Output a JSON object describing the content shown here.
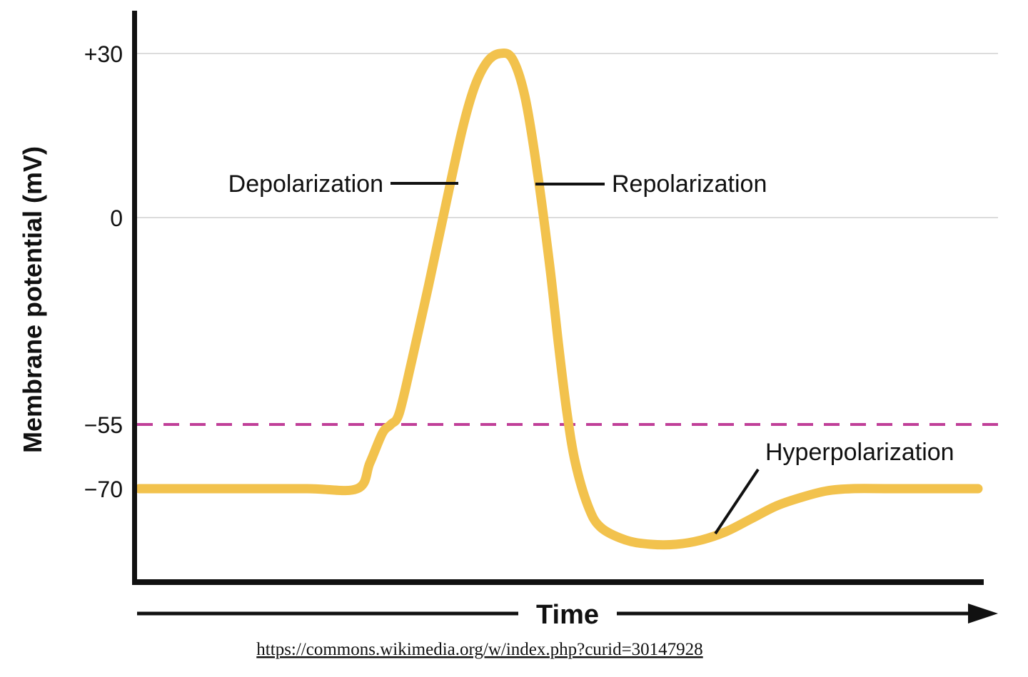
{
  "chart_data": {
    "type": "line",
    "x_axis": {
      "label": "Time",
      "unit": "arbitrary"
    },
    "y_axis": {
      "label": "Membrane potential (mV)",
      "ticks": [
        {
          "label": "+30",
          "value": 30
        },
        {
          "label": "0",
          "value": 0
        },
        {
          "label": "−55",
          "value": -55
        },
        {
          "label": "−70",
          "value": -70
        }
      ]
    },
    "gridline_values": [
      30,
      0
    ],
    "threshold_line": {
      "value": -55,
      "style": "dashed",
      "color": "#c03f98"
    },
    "resting_potential": -70,
    "peak_potential": 30,
    "hyperpolarization_min": -83,
    "annotations": [
      {
        "label": "Depolarization",
        "phase": "rising"
      },
      {
        "label": "Repolarization",
        "phase": "falling"
      },
      {
        "label": "Hyperpolarization",
        "phase": "undershoot"
      }
    ],
    "series": [
      {
        "name": "membrane-potential",
        "color": "#f2c24d",
        "points": [
          [
            0,
            -70
          ],
          [
            1,
            -70
          ],
          [
            2,
            -70
          ],
          [
            2.6,
            -70
          ],
          [
            2.75,
            -64
          ],
          [
            2.9,
            -57
          ],
          [
            3.0,
            -55
          ],
          [
            3.1,
            -52
          ],
          [
            3.25,
            -38
          ],
          [
            3.45,
            -18
          ],
          [
            3.65,
            2
          ],
          [
            3.85,
            16
          ],
          [
            4.0,
            24
          ],
          [
            4.15,
            28.5
          ],
          [
            4.3,
            30
          ],
          [
            4.45,
            29
          ],
          [
            4.6,
            22
          ],
          [
            4.75,
            8
          ],
          [
            4.9,
            -14
          ],
          [
            5.0,
            -34
          ],
          [
            5.1,
            -52
          ],
          [
            5.2,
            -64
          ],
          [
            5.35,
            -74
          ],
          [
            5.5,
            -79
          ],
          [
            5.8,
            -82
          ],
          [
            6.1,
            -83
          ],
          [
            6.4,
            -83
          ],
          [
            6.7,
            -82
          ],
          [
            7.0,
            -80
          ],
          [
            7.3,
            -77
          ],
          [
            7.6,
            -74
          ],
          [
            7.9,
            -72
          ],
          [
            8.2,
            -70.5
          ],
          [
            8.5,
            -70
          ],
          [
            9,
            -70
          ],
          [
            10,
            -70
          ]
        ]
      }
    ],
    "source": "https://commons.wikimedia.org/w/index.php?curid=30147928"
  }
}
